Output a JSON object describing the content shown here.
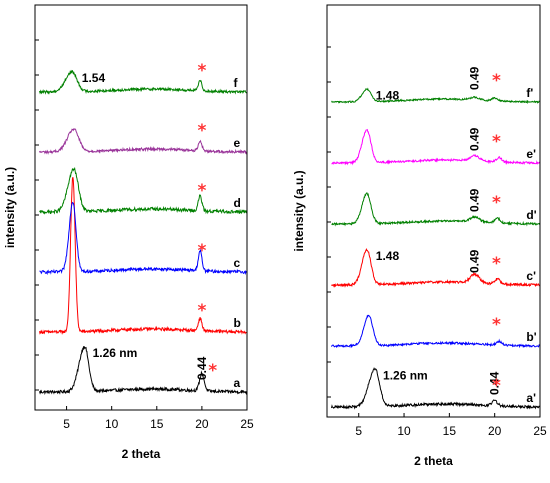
{
  "chart_data": [
    {
      "type": "line",
      "panel": "left",
      "xlabel": "2 theta",
      "ylabel": "intensity (a.u.)",
      "xlim": [
        1.5,
        25
      ],
      "xticks": [
        5,
        10,
        15,
        20,
        25
      ],
      "yticks_labeled": false,
      "grid": false,
      "legend": "none",
      "series": [
        {
          "name": "a",
          "color": "#000000",
          "peak_x": 7.0,
          "peak_height": 0.18,
          "peak_width": 0.45,
          "asym": 1.4,
          "secondary": [
            [
              20.0,
              0.07,
              0.25
            ]
          ],
          "noise": 0.012
        },
        {
          "name": "b",
          "color": "#ff0000",
          "peak_x": 5.7,
          "peak_height": 0.62,
          "peak_width": 0.25,
          "asym": 1.0,
          "secondary": [
            [
              19.8,
              0.05,
              0.2
            ]
          ],
          "noise": 0.012
        },
        {
          "name": "c",
          "color": "#0000ff",
          "peak_x": 5.7,
          "peak_height": 0.28,
          "peak_width": 0.35,
          "asym": 1.2,
          "secondary": [
            [
              19.8,
              0.08,
              0.2
            ]
          ],
          "noise": 0.012
        },
        {
          "name": "d",
          "color": "#008000",
          "peak_x": 5.8,
          "peak_height": 0.17,
          "peak_width": 0.5,
          "asym": 1.3,
          "secondary": [
            [
              19.8,
              0.06,
              0.2
            ]
          ],
          "noise": 0.013
        },
        {
          "name": "e",
          "color": "#993399",
          "peak_x": 5.8,
          "peak_height": 0.09,
          "peak_width": 0.55,
          "asym": 1.3,
          "secondary": [
            [
              19.8,
              0.04,
              0.2
            ]
          ],
          "noise": 0.01
        },
        {
          "name": "f",
          "color": "#008000",
          "peak_x": 5.6,
          "peak_height": 0.08,
          "peak_width": 0.55,
          "asym": 1.3,
          "secondary": [
            [
              19.8,
              0.04,
              0.2
            ]
          ],
          "noise": 0.01
        }
      ],
      "annotations": [
        {
          "text": "1.54",
          "x": 5.8,
          "near": "f"
        },
        {
          "text": "1.26 nm",
          "x": 7.0,
          "near": "a"
        },
        {
          "text": "0.44",
          "x": 20.0,
          "near": "a",
          "rotated": true
        }
      ],
      "markers": [
        {
          "symbol": "*",
          "x": 20.0,
          "near": "f",
          "color": "#ff3333"
        },
        {
          "symbol": "*",
          "x": 20.0,
          "near": "e",
          "color": "#ff3333"
        },
        {
          "symbol": "*",
          "x": 20.0,
          "near": "d",
          "color": "#ff3333"
        },
        {
          "symbol": "*",
          "x": 20.0,
          "near": "c",
          "color": "#ff3333"
        },
        {
          "symbol": "*",
          "x": 20.0,
          "near": "b",
          "color": "#ff3333"
        },
        {
          "symbol": "*",
          "x": 21.2,
          "near": "a",
          "color": "#ff3333"
        }
      ]
    },
    {
      "type": "line",
      "panel": "right",
      "xlabel": "2 theta",
      "ylabel": "intensity (a.u.)",
      "xlim": [
        1.5,
        25
      ],
      "xticks": [
        5,
        10,
        15,
        20,
        25
      ],
      "yticks_labeled": false,
      "grid": false,
      "legend": "none",
      "series": [
        {
          "name": "a'",
          "color": "#000000",
          "peak_x": 6.8,
          "peak_height": 0.15,
          "peak_width": 0.5,
          "asym": 1.4,
          "secondary": [
            [
              20.0,
              0.02,
              0.3
            ]
          ],
          "noise": 0.01
        },
        {
          "name": "b'",
          "color": "#0000ff",
          "peak_x": 6.1,
          "peak_height": 0.12,
          "peak_width": 0.45,
          "asym": 1.2,
          "secondary": [
            [
              20.5,
              0.015,
              0.3
            ]
          ],
          "noise": 0.008
        },
        {
          "name": "c'",
          "color": "#ff0000",
          "peak_x": 5.9,
          "peak_height": 0.14,
          "peak_width": 0.45,
          "asym": 1.2,
          "secondary": [
            [
              17.8,
              0.035,
              0.5
            ],
            [
              20.3,
              0.02,
              0.3
            ]
          ],
          "noise": 0.009
        },
        {
          "name": "d'",
          "color": "#008000",
          "peak_x": 5.9,
          "peak_height": 0.12,
          "peak_width": 0.45,
          "asym": 1.2,
          "secondary": [
            [
              17.8,
              0.02,
              0.5
            ],
            [
              20.3,
              0.018,
              0.3
            ]
          ],
          "noise": 0.008
        },
        {
          "name": "e'",
          "color": "#ff00ff",
          "peak_x": 5.9,
          "peak_height": 0.13,
          "peak_width": 0.45,
          "asym": 1.2,
          "secondary": [
            [
              17.8,
              0.02,
              0.5
            ],
            [
              20.5,
              0.018,
              0.3
            ]
          ],
          "noise": 0.008
        },
        {
          "name": "f'",
          "color": "#008000",
          "peak_x": 5.9,
          "peak_height": 0.05,
          "peak_width": 0.45,
          "asym": 1.2,
          "secondary": [
            [
              17.8,
              0.01,
              0.5
            ],
            [
              20.0,
              0.012,
              0.3
            ]
          ],
          "noise": 0.006
        }
      ],
      "annotations": [
        {
          "text": "1.48",
          "x": 6.0,
          "near": "f'"
        },
        {
          "text": "1.48",
          "x": 6.0,
          "near": "c'"
        },
        {
          "text": "1.26 nm",
          "x": 6.8,
          "near": "a'"
        },
        {
          "text": "0.49",
          "x": 17.8,
          "near": "f'",
          "rotated": true
        },
        {
          "text": "0.49",
          "x": 17.8,
          "near": "e'",
          "rotated": true
        },
        {
          "text": "0.49",
          "x": 17.8,
          "near": "d'",
          "rotated": true
        },
        {
          "text": "0.49",
          "x": 17.8,
          "near": "c'",
          "rotated": true
        },
        {
          "text": "0.44",
          "x": 20.0,
          "near": "a'",
          "rotated": true
        }
      ],
      "markers": [
        {
          "symbol": "*",
          "x": 20.2,
          "near": "f'",
          "color": "#ff3333"
        },
        {
          "symbol": "*",
          "x": 20.2,
          "near": "e'",
          "color": "#ff3333"
        },
        {
          "symbol": "*",
          "x": 20.2,
          "near": "d'",
          "color": "#ff3333"
        },
        {
          "symbol": "*",
          "x": 20.2,
          "near": "c'",
          "color": "#ff3333"
        },
        {
          "symbol": "*",
          "x": 20.2,
          "near": "b'",
          "color": "#ff3333"
        },
        {
          "symbol": "*",
          "x": 20.2,
          "near": "a'",
          "color": "#ff3333"
        }
      ]
    }
  ]
}
